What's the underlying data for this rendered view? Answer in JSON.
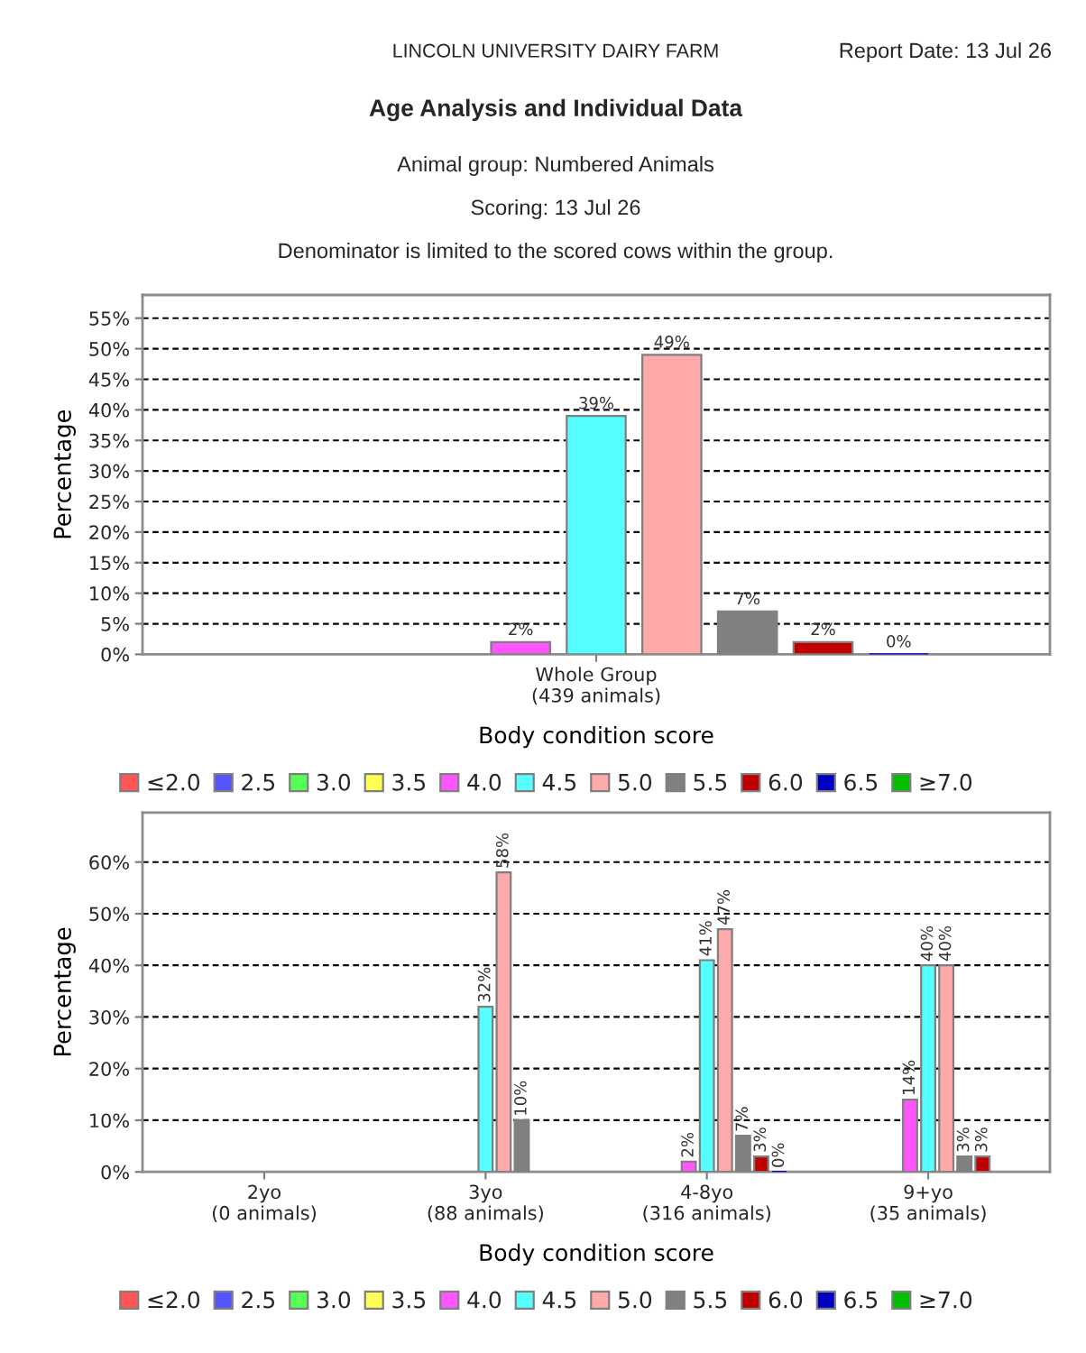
{
  "chart_data": [
    {
      "type": "bar",
      "title": "Age Analysis and Individual Data",
      "subtitle": "Animal group: Numbered Animals",
      "annotations": [
        "LINCOLN UNIVERSITY DAIRY FARM",
        "Report Date: 13 Jul 26",
        "Scoring: 13 Jul 26",
        "Denominator is limited to the scored cows within the group."
      ],
      "xlabel": "Body condition score",
      "ylabel": "Percentage",
      "categories": [
        "Whole Group\n(439 animals)"
      ],
      "series": [
        {
          "name": "≤2.0",
          "color": "#ff5555",
          "values": [
            null
          ]
        },
        {
          "name": "2.5",
          "color": "#5555ff",
          "values": [
            null
          ]
        },
        {
          "name": "3.0",
          "color": "#55ff55",
          "values": [
            null
          ]
        },
        {
          "name": "3.5",
          "color": "#ffff55",
          "values": [
            null
          ]
        },
        {
          "name": "4.0",
          "color": "#ff55ff",
          "values": [
            2
          ],
          "value_labels": [
            "2%"
          ]
        },
        {
          "name": "4.5",
          "color": "#55ffff",
          "values": [
            39
          ],
          "value_labels": [
            "39%"
          ]
        },
        {
          "name": "5.0",
          "color": "#ffaaaa",
          "values": [
            49
          ],
          "value_labels": [
            "49%"
          ]
        },
        {
          "name": "5.5",
          "color": "#808080",
          "values": [
            7
          ],
          "value_labels": [
            "7%"
          ]
        },
        {
          "name": "6.0",
          "color": "#c00000",
          "values": [
            2
          ],
          "value_labels": [
            "2%"
          ]
        },
        {
          "name": "6.5",
          "color": "#0000c0",
          "values": [
            0
          ],
          "value_labels": [
            "0%"
          ]
        },
        {
          "name": "≥7.0",
          "color": "#00c000",
          "values": [
            null
          ]
        }
      ],
      "ylim": [
        0,
        58.8
      ],
      "yticks": [
        {
          "value": 0,
          "label": "0%"
        },
        {
          "value": 5,
          "label": "5%"
        },
        {
          "value": 10,
          "label": "10%"
        },
        {
          "value": 15,
          "label": "15%"
        },
        {
          "value": 20,
          "label": "20%"
        },
        {
          "value": 25,
          "label": "25%"
        },
        {
          "value": 30,
          "label": "30%"
        },
        {
          "value": 35,
          "label": "35%"
        },
        {
          "value": 40,
          "label": "40%"
        },
        {
          "value": 45,
          "label": "45%"
        },
        {
          "value": 50,
          "label": "50%"
        },
        {
          "value": 55,
          "label": "55%"
        }
      ],
      "grid": "y",
      "legend": "bottom"
    },
    {
      "type": "bar",
      "xlabel": "Body condition score",
      "ylabel": "Percentage",
      "categories": [
        "2yo\n(0 animals)",
        "3yo\n(88 animals)",
        "4-8yo\n(316 animals)",
        "9+yo\n(35 animals)"
      ],
      "series": [
        {
          "name": "≤2.0",
          "color": "#ff5555",
          "values": [
            null,
            null,
            null,
            null
          ]
        },
        {
          "name": "2.5",
          "color": "#5555ff",
          "values": [
            null,
            null,
            null,
            null
          ]
        },
        {
          "name": "3.0",
          "color": "#55ff55",
          "values": [
            null,
            null,
            null,
            null
          ]
        },
        {
          "name": "3.5",
          "color": "#ffff55",
          "values": [
            null,
            null,
            null,
            null
          ]
        },
        {
          "name": "4.0",
          "color": "#ff55ff",
          "values": [
            null,
            null,
            2,
            14
          ],
          "value_labels": [
            null,
            null,
            "2%",
            "14%"
          ]
        },
        {
          "name": "4.5",
          "color": "#55ffff",
          "values": [
            null,
            32,
            41,
            40
          ],
          "value_labels": [
            null,
            "32%",
            "41%",
            "40%"
          ]
        },
        {
          "name": "5.0",
          "color": "#ffaaaa",
          "values": [
            null,
            58,
            47,
            40
          ],
          "value_labels": [
            null,
            "58%",
            "47%",
            "40%"
          ]
        },
        {
          "name": "5.5",
          "color": "#808080",
          "values": [
            null,
            10,
            7,
            3
          ],
          "value_labels": [
            null,
            "10%",
            "7%",
            "3%"
          ]
        },
        {
          "name": "6.0",
          "color": "#c00000",
          "values": [
            null,
            null,
            3,
            3
          ],
          "value_labels": [
            null,
            null,
            "3%",
            "3%"
          ]
        },
        {
          "name": "6.5",
          "color": "#0000c0",
          "values": [
            null,
            null,
            0,
            null
          ],
          "value_labels": [
            null,
            null,
            "0%",
            null
          ]
        },
        {
          "name": "≥7.0",
          "color": "#00c000",
          "values": [
            null,
            null,
            null,
            null
          ]
        }
      ],
      "ylim": [
        0,
        69.6
      ],
      "yticks": [
        {
          "value": 0,
          "label": "0%"
        },
        {
          "value": 10,
          "label": "10%"
        },
        {
          "value": 20,
          "label": "20%"
        },
        {
          "value": 30,
          "label": "30%"
        },
        {
          "value": 40,
          "label": "40%"
        },
        {
          "value": 50,
          "label": "50%"
        },
        {
          "value": 60,
          "label": "60%"
        }
      ],
      "grid": "y",
      "legend": "bottom"
    }
  ]
}
